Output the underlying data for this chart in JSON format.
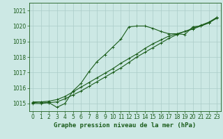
{
  "title": "Graphe pression niveau de la mer (hPa)",
  "bg_color": "#cce8e4",
  "grid_color": "#aaccc8",
  "line_color": "#1a5c1a",
  "text_color": "#1a5c1a",
  "xlim": [
    -0.5,
    23.5
  ],
  "ylim": [
    1014.5,
    1021.5
  ],
  "yticks": [
    1015,
    1016,
    1017,
    1018,
    1019,
    1020,
    1021
  ],
  "xticks": [
    0,
    1,
    2,
    3,
    4,
    5,
    6,
    7,
    8,
    9,
    10,
    11,
    12,
    13,
    14,
    15,
    16,
    17,
    18,
    19,
    20,
    21,
    22,
    23
  ],
  "line1_x": [
    0,
    1,
    2,
    3,
    4,
    5,
    6,
    7,
    8,
    9,
    10,
    11,
    12,
    13,
    14,
    15,
    16,
    17,
    18,
    19,
    20,
    21,
    22,
    23
  ],
  "line1_y": [
    1015.1,
    1015.1,
    1015.05,
    1014.75,
    1015.0,
    1015.8,
    1016.3,
    1017.05,
    1017.7,
    1018.15,
    1018.65,
    1019.15,
    1019.95,
    1020.0,
    1020.0,
    1019.85,
    1019.65,
    1019.5,
    1019.5,
    1019.45,
    1019.95,
    1020.0,
    1020.2,
    1020.55
  ],
  "line2_x": [
    0,
    1,
    2,
    3,
    4,
    5,
    6,
    7,
    8,
    9,
    10,
    11,
    12,
    13,
    14,
    15,
    16,
    17,
    18,
    19,
    20,
    21,
    22,
    23
  ],
  "line2_y": [
    1015.05,
    1015.1,
    1015.15,
    1015.25,
    1015.45,
    1015.75,
    1016.05,
    1016.35,
    1016.65,
    1016.95,
    1017.25,
    1017.6,
    1017.9,
    1018.2,
    1018.55,
    1018.85,
    1019.1,
    1019.35,
    1019.5,
    1019.65,
    1019.8,
    1020.0,
    1020.2,
    1020.5
  ],
  "line3_x": [
    0,
    1,
    2,
    3,
    4,
    5,
    6,
    7,
    8,
    9,
    10,
    11,
    12,
    13,
    14,
    15,
    16,
    17,
    18,
    19,
    20,
    21,
    22,
    23
  ],
  "line3_y": [
    1015.0,
    1015.0,
    1015.05,
    1015.1,
    1015.3,
    1015.55,
    1015.8,
    1016.1,
    1016.4,
    1016.7,
    1017.0,
    1017.3,
    1017.65,
    1018.0,
    1018.3,
    1018.6,
    1018.9,
    1019.2,
    1019.45,
    1019.65,
    1019.85,
    1020.05,
    1020.25,
    1020.55
  ],
  "tick_fontsize": 5.5,
  "label_fontsize": 6.5
}
